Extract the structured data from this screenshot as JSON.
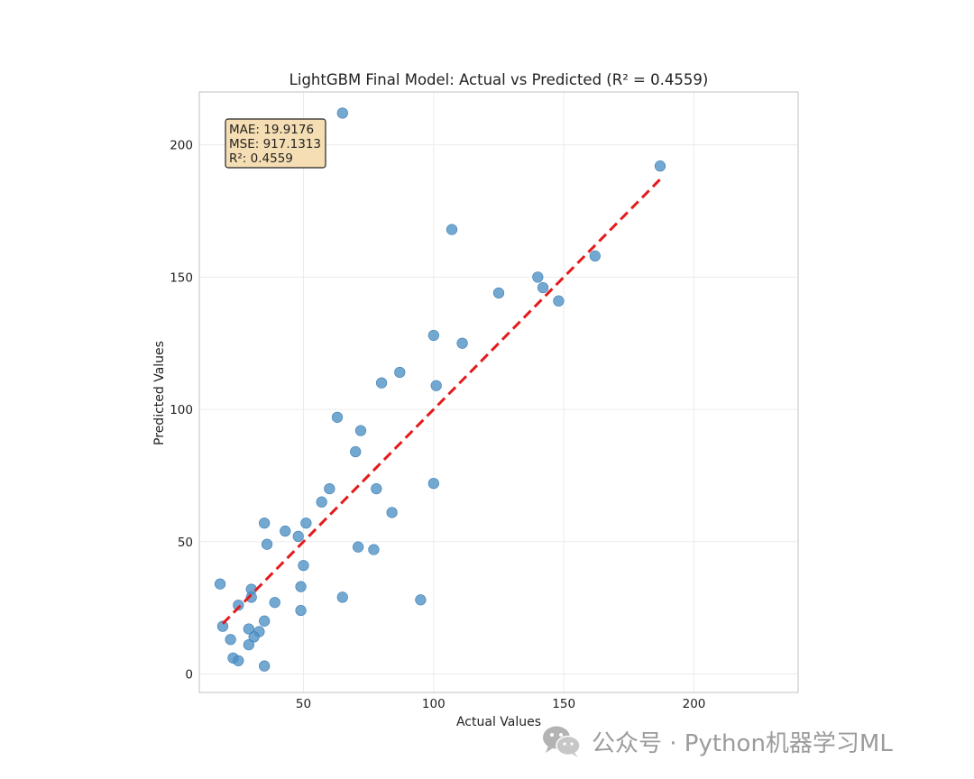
{
  "chart_data": {
    "type": "scatter",
    "title": "LightGBM Final Model: Actual vs Predicted (R² = 0.4559)",
    "xlabel": "Actual Values",
    "ylabel": "Predicted Values",
    "xlim": [
      10,
      240
    ],
    "ylim": [
      -7,
      220
    ],
    "xticks": [
      50,
      100,
      150,
      200
    ],
    "yticks": [
      0,
      50,
      100,
      150,
      200
    ],
    "grid": true,
    "point_color": "#4c8fc4",
    "reference_line": {
      "style": "dashed",
      "color": "#e41a1c",
      "x": [
        19,
        187
      ],
      "y": [
        19,
        187
      ]
    },
    "metrics_box": {
      "lines": [
        "MAE: 19.9176",
        "MSE: 917.1313",
        "R²: 0.4559"
      ],
      "placement": "top-left",
      "fill": "#f5deb3"
    },
    "points": [
      {
        "x": 65,
        "y": 212
      },
      {
        "x": 187,
        "y": 192
      },
      {
        "x": 107,
        "y": 168
      },
      {
        "x": 162,
        "y": 158
      },
      {
        "x": 140,
        "y": 150
      },
      {
        "x": 142,
        "y": 146
      },
      {
        "x": 125,
        "y": 144
      },
      {
        "x": 148,
        "y": 141
      },
      {
        "x": 100,
        "y": 128
      },
      {
        "x": 111,
        "y": 125
      },
      {
        "x": 87,
        "y": 114
      },
      {
        "x": 80,
        "y": 110
      },
      {
        "x": 101,
        "y": 109
      },
      {
        "x": 63,
        "y": 97
      },
      {
        "x": 72,
        "y": 92
      },
      {
        "x": 70,
        "y": 84
      },
      {
        "x": 100,
        "y": 72
      },
      {
        "x": 60,
        "y": 70
      },
      {
        "x": 78,
        "y": 70
      },
      {
        "x": 57,
        "y": 65
      },
      {
        "x": 84,
        "y": 61
      },
      {
        "x": 35,
        "y": 57
      },
      {
        "x": 51,
        "y": 57
      },
      {
        "x": 43,
        "y": 54
      },
      {
        "x": 48,
        "y": 52
      },
      {
        "x": 36,
        "y": 49
      },
      {
        "x": 71,
        "y": 48
      },
      {
        "x": 77,
        "y": 47
      },
      {
        "x": 50,
        "y": 41
      },
      {
        "x": 18,
        "y": 34
      },
      {
        "x": 49,
        "y": 33
      },
      {
        "x": 30,
        "y": 32
      },
      {
        "x": 30,
        "y": 29
      },
      {
        "x": 65,
        "y": 29
      },
      {
        "x": 95,
        "y": 28
      },
      {
        "x": 39,
        "y": 27
      },
      {
        "x": 25,
        "y": 26
      },
      {
        "x": 49,
        "y": 24
      },
      {
        "x": 35,
        "y": 20
      },
      {
        "x": 19,
        "y": 18
      },
      {
        "x": 29,
        "y": 17
      },
      {
        "x": 33,
        "y": 16
      },
      {
        "x": 31,
        "y": 14
      },
      {
        "x": 22,
        "y": 13
      },
      {
        "x": 29,
        "y": 11
      },
      {
        "x": 23,
        "y": 6
      },
      {
        "x": 25,
        "y": 5
      },
      {
        "x": 35,
        "y": 3
      }
    ]
  },
  "watermark": {
    "text": "公众号 · Python机器学习ML"
  }
}
